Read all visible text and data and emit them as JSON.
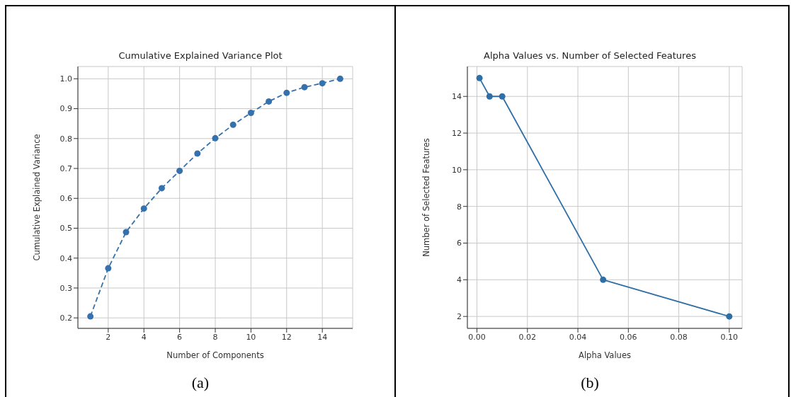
{
  "chart_data": [
    {
      "type": "line",
      "title": "Cumulative Explained Variance Plot",
      "xlabel": "Number of Components",
      "ylabel": "Cumulative Explained Variance",
      "x": [
        1,
        2,
        3,
        4,
        5,
        6,
        7,
        8,
        9,
        10,
        11,
        12,
        13,
        14,
        15
      ],
      "values": [
        0.205,
        0.366,
        0.487,
        0.566,
        0.634,
        0.692,
        0.75,
        0.801,
        0.846,
        0.886,
        0.924,
        0.953,
        0.972,
        0.985,
        1.0
      ],
      "color": "#3571ad",
      "xlim": [
        0.3,
        15.7
      ],
      "xticks": [
        2,
        4,
        6,
        8,
        10,
        12,
        14
      ],
      "ylim": [
        0.165,
        1.041
      ],
      "yticks": [
        0.2,
        0.3,
        0.4,
        0.5,
        0.6,
        0.7,
        0.8,
        0.9,
        {
          "value": 1,
          "label": "1.0"
        }
      ],
      "grid": true,
      "marker": "circle",
      "line_style": "dashed",
      "annotations": [
        "(a)"
      ]
    },
    {
      "type": "line",
      "title": "Alpha Values vs. Number of Selected Features",
      "xlabel": "Alpha Values",
      "ylabel": "Number of Selected Features",
      "x": [
        0.001,
        0.005,
        0.01,
        0.05,
        0.1
      ],
      "values": [
        15,
        14,
        14,
        4,
        2
      ],
      "color": "#2f6fa6",
      "xlim": [
        -0.0038,
        0.1051
      ],
      "xticks": [
        {
          "value": 0,
          "label": "0.00"
        },
        0.02,
        0.04,
        0.06,
        0.08,
        {
          "value": 0.1,
          "label": "0.10"
        }
      ],
      "ylim": [
        1.35,
        15.63
      ],
      "yticks": [
        2,
        4,
        6,
        8,
        10,
        12,
        14
      ],
      "grid": true,
      "marker": "circle",
      "line_style": "solid",
      "annotations": [
        "(b)"
      ]
    }
  ]
}
